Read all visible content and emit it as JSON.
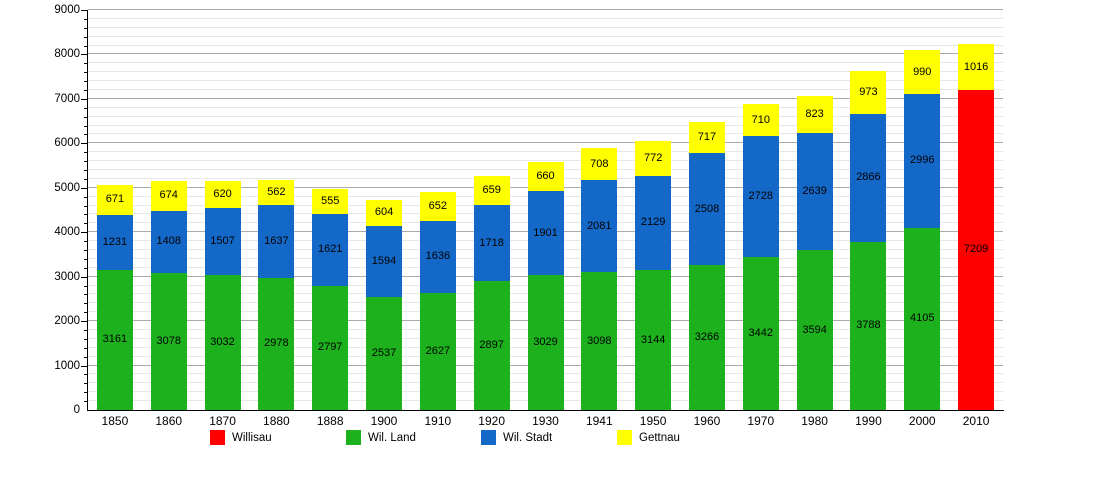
{
  "chart_data": {
    "type": "bar",
    "stacked": true,
    "title": "",
    "xlabel": "",
    "ylabel": "",
    "ylim": [
      0,
      9000
    ],
    "y_major_step": 1000,
    "y_minor_step": 200,
    "grid": true,
    "legend_position": "bottom",
    "background_color": "#ffffff",
    "categories": [
      "1850",
      "1860",
      "1870",
      "1880",
      "1888",
      "1900",
      "1910",
      "1920",
      "1930",
      "1941",
      "1950",
      "1960",
      "1970",
      "1980",
      "1990",
      "2000",
      "2010"
    ],
    "series": [
      {
        "name": "Willisau",
        "color": "#ff0000",
        "values": [
          null,
          null,
          null,
          null,
          null,
          null,
          null,
          null,
          null,
          null,
          null,
          null,
          null,
          null,
          null,
          null,
          7209
        ]
      },
      {
        "name": "Wil. Land",
        "color": "#1db21d",
        "values": [
          3161,
          3078,
          3032,
          2978,
          2797,
          2537,
          2627,
          2897,
          3029,
          3098,
          3144,
          3266,
          3442,
          3594,
          3788,
          4105,
          null
        ]
      },
      {
        "name": "Wil. Stadt",
        "color": "#1469c8",
        "values": [
          1231,
          1408,
          1507,
          1637,
          1621,
          1594,
          1636,
          1718,
          1901,
          2081,
          2129,
          2508,
          2728,
          2639,
          2866,
          2996,
          null
        ]
      },
      {
        "name": "Gettnau",
        "color": "#ffff00",
        "values": [
          671,
          674,
          620,
          562,
          555,
          604,
          652,
          659,
          660,
          708,
          772,
          717,
          710,
          823,
          973,
          990,
          1016
        ]
      }
    ]
  },
  "legend": {
    "items": [
      {
        "label": "Willisau",
        "color": "#ff0000"
      },
      {
        "label": "Wil. Land",
        "color": "#1db21d"
      },
      {
        "label": "Wil. Stadt",
        "color": "#1469c8"
      },
      {
        "label": "Gettnau",
        "color": "#ffff00"
      }
    ]
  }
}
